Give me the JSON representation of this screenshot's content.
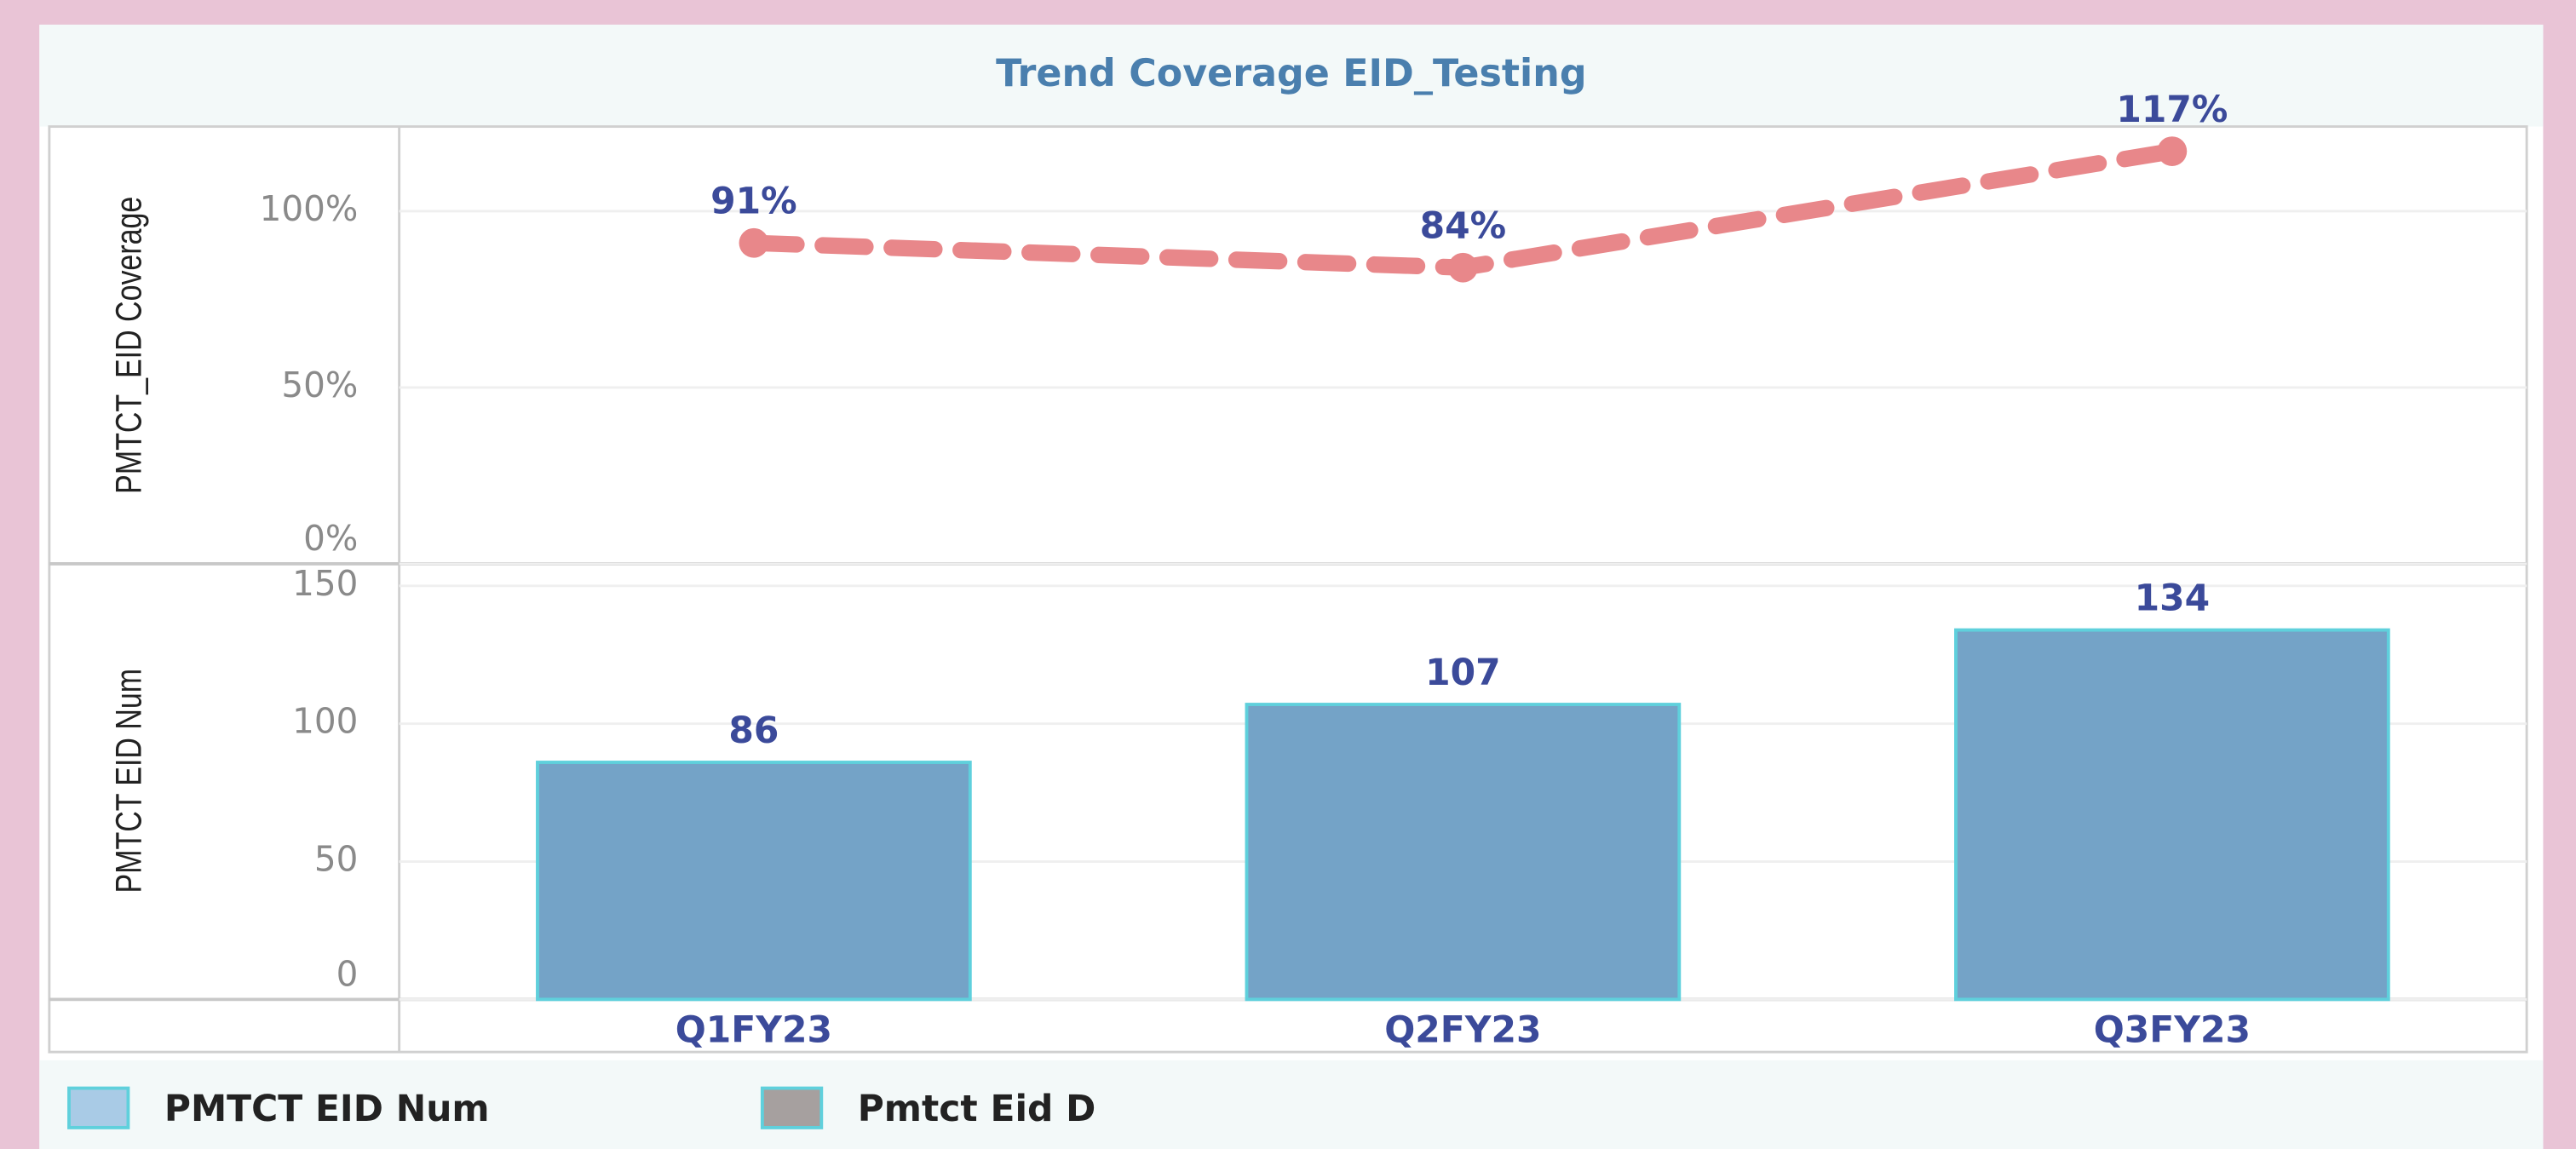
{
  "chart_data": [
    {
      "type": "line",
      "title": "Trend Coverage EID_Testing",
      "y_label": "PMTCT_EID Coverage",
      "categories": [
        "Q1FY23",
        "Q2FY23",
        "Q3FY23"
      ],
      "values": [
        91,
        84,
        117
      ],
      "value_labels": [
        "91%",
        "84%",
        "117%"
      ],
      "color": "#e8878a",
      "ylim": [
        0,
        124
      ],
      "yticks": [
        {
          "value": 0,
          "label": "0%"
        },
        {
          "value": 50,
          "label": "50%"
        },
        {
          "value": 100,
          "label": "100%"
        }
      ],
      "grid": true
    },
    {
      "type": "bar",
      "y_label": "PMTCT EID Num",
      "categories": [
        "Q1FY23",
        "Q2FY23",
        "Q3FY23"
      ],
      "values": [
        86,
        107,
        134
      ],
      "color": "#74a3c7",
      "ylim": [
        0,
        158
      ],
      "yticks": [
        0,
        50,
        100,
        150
      ],
      "grid": true
    }
  ],
  "legend": [
    {
      "name": "PMTCT EID Num",
      "color": "#a9cbe6"
    },
    {
      "name": "Pmtct Eid D",
      "color": "#a6a09f"
    }
  ]
}
